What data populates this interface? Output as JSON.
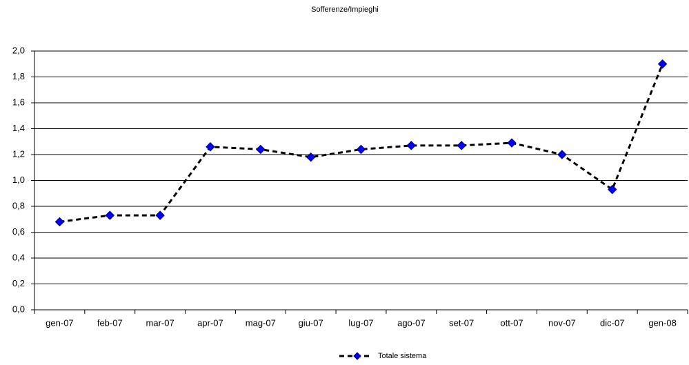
{
  "chart_data": {
    "type": "line",
    "title": "Sofferenze/Impieghi",
    "categories": [
      "gen-07",
      "feb-07",
      "mar-07",
      "apr-07",
      "mag-07",
      "giu-07",
      "lug-07",
      "ago-07",
      "set-07",
      "ott-07",
      "nov-07",
      "dic-07",
      "gen-08"
    ],
    "series": [
      {
        "name": "Totale sistema",
        "color": "#0000ff",
        "values": [
          0.68,
          0.73,
          0.73,
          1.26,
          1.24,
          1.18,
          1.24,
          1.27,
          1.27,
          1.29,
          1.2,
          0.93,
          1.9
        ]
      }
    ],
    "ylim": [
      0,
      2
    ],
    "yticks": [
      {
        "value": 0,
        "label": "0,0"
      },
      {
        "value": 0.2,
        "label": "0,2"
      },
      {
        "value": 0.4,
        "label": "0,4"
      },
      {
        "value": 0.6,
        "label": "0,6"
      },
      {
        "value": 0.8,
        "label": "0,8"
      },
      {
        "value": 1,
        "label": "1,0"
      },
      {
        "value": 1.2,
        "label": "1,2"
      },
      {
        "value": 1.4,
        "label": "1,4"
      },
      {
        "value": 1.6,
        "label": "1,6"
      },
      {
        "value": 1.8,
        "label": "1,8"
      },
      {
        "value": 2,
        "label": "2,0"
      }
    ],
    "grid": true
  }
}
